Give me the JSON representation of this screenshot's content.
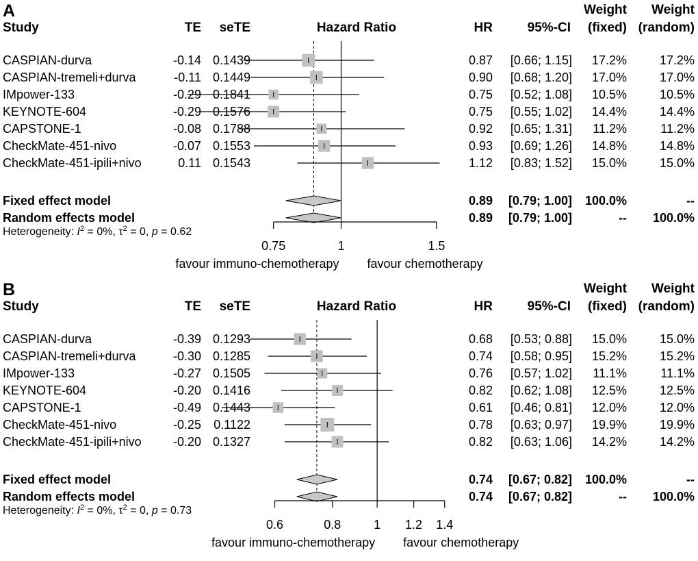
{
  "chart_data": [
    {
      "type": "forest",
      "panel_label": "A",
      "headers": {
        "study": "Study",
        "te": "TE",
        "sete": "seTE",
        "plot": "Hazard Ratio",
        "hr": "HR",
        "ci": "95%-CI",
        "weight_fixed_1": "Weight",
        "weight_fixed_2": "(fixed)",
        "weight_random_1": "Weight",
        "weight_random_2": "(random)"
      },
      "log_range": [
        0.7,
        1.6
      ],
      "ticks": [
        {
          "v": 0.75,
          "label": "0.75"
        },
        {
          "v": 1,
          "label": "1"
        },
        {
          "v": 1.5,
          "label": "1.5"
        }
      ],
      "null_line": 1,
      "studies": [
        {
          "name": "CASPIAN-durva",
          "te": "-0.14",
          "sete": "0.1439",
          "hr": 0.87,
          "lo": 0.66,
          "hi": 1.15,
          "hr_text": "0.87",
          "ci_text": "[0.66; 1.15]",
          "wf": "17.2%",
          "wr": "17.2%",
          "weight": 17.2
        },
        {
          "name": "CASPIAN-tremeli+durva",
          "te": "-0.11",
          "sete": "0.1449",
          "hr": 0.9,
          "lo": 0.68,
          "hi": 1.2,
          "hr_text": "0.90",
          "ci_text": "[0.68; 1.20]",
          "wf": "17.0%",
          "wr": "17.0%",
          "weight": 17.0
        },
        {
          "name": "IMpower-133",
          "te": "-0.29",
          "sete": "0.1841",
          "hr": 0.75,
          "lo": 0.52,
          "hi": 1.08,
          "hr_text": "0.75",
          "ci_text": "[0.52; 1.08]",
          "wf": "10.5%",
          "wr": "10.5%",
          "weight": 10.5
        },
        {
          "name": "KEYNOTE-604",
          "te": "-0.29",
          "sete": "0.1576",
          "hr": 0.75,
          "lo": 0.55,
          "hi": 1.02,
          "hr_text": "0.75",
          "ci_text": "[0.55; 1.02]",
          "wf": "14.4%",
          "wr": "14.4%",
          "weight": 14.4
        },
        {
          "name": "CAPSTONE-1",
          "te": "-0.08",
          "sete": "0.1788",
          "hr": 0.92,
          "lo": 0.65,
          "hi": 1.31,
          "hr_text": "0.92",
          "ci_text": "[0.65; 1.31]",
          "wf": "11.2%",
          "wr": "11.2%",
          "weight": 11.2
        },
        {
          "name": "CheckMate-451-nivo",
          "te": "-0.07",
          "sete": "0.1553",
          "hr": 0.93,
          "lo": 0.69,
          "hi": 1.26,
          "hr_text": "0.93",
          "ci_text": "[0.69; 1.26]",
          "wf": "14.8%",
          "wr": "14.8%",
          "weight": 14.8
        },
        {
          "name": "CheckMate-451-ipili+nivo",
          "te": "0.11",
          "sete": "0.1543",
          "hr": 1.12,
          "lo": 0.83,
          "hi": 1.52,
          "hr_text": "1.12",
          "ci_text": "[0.83; 1.52]",
          "wf": "15.0%",
          "wr": "15.0%",
          "weight": 15.0
        }
      ],
      "fixed": {
        "label": "Fixed effect model",
        "hr": 0.89,
        "lo": 0.79,
        "hi": 1.0,
        "hr_text": "0.89",
        "ci_text": "[0.79; 1.00]",
        "wf": "100.0%",
        "wr": "--"
      },
      "random": {
        "label": "Random effects model",
        "hr": 0.89,
        "lo": 0.79,
        "hi": 1.0,
        "hr_text": "0.89",
        "ci_text": "[0.79; 1.00]",
        "wf": "--",
        "wr": "100.0%"
      },
      "heterogeneity": {
        "prefix": "Heterogeneity: ",
        "i2": "I",
        "i2_sup": "2",
        "i2_val": " = 0%, ",
        "tau": "τ",
        "tau_sup": "2",
        "tau_val": " = 0, ",
        "p": "p",
        "p_val": " = 0.62"
      },
      "favour_left": "favour immuno-chemotherapy",
      "favour_right": "favour chemotherapy"
    },
    {
      "type": "forest",
      "panel_label": "B",
      "headers": {
        "study": "Study",
        "te": "TE",
        "sete": "seTE",
        "plot": "Hazard Ratio",
        "hr": "HR",
        "ci": "95%-CI",
        "weight_fixed_1": "Weight",
        "weight_fixed_2": "(fixed)",
        "weight_random_1": "Weight",
        "weight_random_2": "(random)"
      },
      "log_range": [
        0.55,
        1.45
      ],
      "ticks": [
        {
          "v": 0.6,
          "label": "0.6"
        },
        {
          "v": 0.8,
          "label": "0.8"
        },
        {
          "v": 1,
          "label": "1"
        },
        {
          "v": 1.2,
          "label": "1.2"
        },
        {
          "v": 1.4,
          "label": "1.4"
        }
      ],
      "null_line": 1,
      "studies": [
        {
          "name": "CASPIAN-durva",
          "te": "-0.39",
          "sete": "0.1293",
          "hr": 0.68,
          "lo": 0.53,
          "hi": 0.88,
          "hr_text": "0.68",
          "ci_text": "[0.53; 0.88]",
          "wf": "15.0%",
          "wr": "15.0%",
          "weight": 15.0
        },
        {
          "name": "CASPIAN-tremeli+durva",
          "te": "-0.30",
          "sete": "0.1285",
          "hr": 0.74,
          "lo": 0.58,
          "hi": 0.95,
          "hr_text": "0.74",
          "ci_text": "[0.58; 0.95]",
          "wf": "15.2%",
          "wr": "15.2%",
          "weight": 15.2
        },
        {
          "name": "IMpower-133",
          "te": "-0.27",
          "sete": "0.1505",
          "hr": 0.76,
          "lo": 0.57,
          "hi": 1.02,
          "hr_text": "0.76",
          "ci_text": "[0.57; 1.02]",
          "wf": "11.1%",
          "wr": "11.1%",
          "weight": 11.1
        },
        {
          "name": "KEYNOTE-604",
          "te": "-0.20",
          "sete": "0.1416",
          "hr": 0.82,
          "lo": 0.62,
          "hi": 1.08,
          "hr_text": "0.82",
          "ci_text": "[0.62; 1.08]",
          "wf": "12.5%",
          "wr": "12.5%",
          "weight": 12.5
        },
        {
          "name": "CAPSTONE-1",
          "te": "-0.49",
          "sete": "0.1443",
          "hr": 0.61,
          "lo": 0.46,
          "hi": 0.81,
          "hr_text": "0.61",
          "ci_text": "[0.46; 0.81]",
          "wf": "12.0%",
          "wr": "12.0%",
          "weight": 12.0
        },
        {
          "name": "CheckMate-451-nivo",
          "te": "-0.25",
          "sete": "0.1122",
          "hr": 0.78,
          "lo": 0.63,
          "hi": 0.97,
          "hr_text": "0.78",
          "ci_text": "[0.63; 0.97]",
          "wf": "19.9%",
          "wr": "19.9%",
          "weight": 19.9
        },
        {
          "name": "CheckMate-451-ipili+nivo",
          "te": "-0.20",
          "sete": "0.1327",
          "hr": 0.82,
          "lo": 0.63,
          "hi": 1.06,
          "hr_text": "0.82",
          "ci_text": "[0.63; 1.06]",
          "wf": "14.2%",
          "wr": "14.2%",
          "weight": 14.2
        }
      ],
      "fixed": {
        "label": "Fixed effect model",
        "hr": 0.74,
        "lo": 0.67,
        "hi": 0.82,
        "hr_text": "0.74",
        "ci_text": "[0.67; 0.82]",
        "wf": "100.0%",
        "wr": "--"
      },
      "random": {
        "label": "Random effects model",
        "hr": 0.74,
        "lo": 0.67,
        "hi": 0.82,
        "hr_text": "0.74",
        "ci_text": "[0.67; 0.82]",
        "wf": "--",
        "wr": "100.0%"
      },
      "heterogeneity": {
        "prefix": "Heterogeneity: ",
        "i2": "I",
        "i2_sup": "2",
        "i2_val": " = 0%, ",
        "tau": "τ",
        "tau_sup": "2",
        "tau_val": " = 0, ",
        "p": "p",
        "p_val": " = 0.73"
      },
      "favour_left": "favour immuno-chemotherapy",
      "favour_right": "favour chemotherapy"
    }
  ]
}
